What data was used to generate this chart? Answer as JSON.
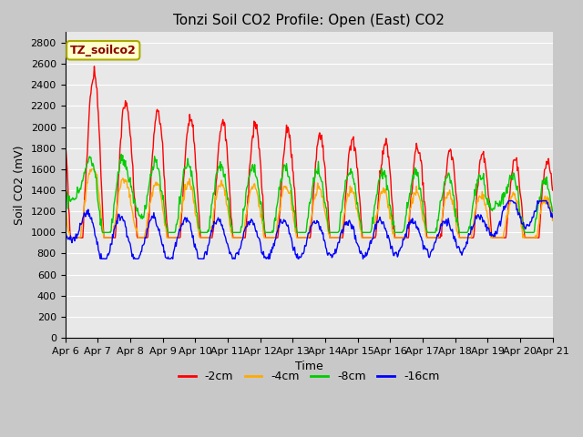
{
  "title": "Tonzi Soil CO2 Profile: Open (East) CO2",
  "xlabel": "Time",
  "ylabel": "Soil CO2 (mV)",
  "ylim": [
    0,
    2900
  ],
  "yticks": [
    0,
    200,
    400,
    600,
    800,
    1000,
    1200,
    1400,
    1600,
    1800,
    2000,
    2200,
    2400,
    2600,
    2800
  ],
  "plot_bg_color": "#e8e8e8",
  "fig_bg_color": "#c8c8c8",
  "legend_label": "TZ_soilco2",
  "series_labels": [
    "-2cm",
    "-4cm",
    "-8cm",
    "-16cm"
  ],
  "series_colors": [
    "#ff0000",
    "#ffaa00",
    "#00cc00",
    "#0000ff"
  ],
  "series_linewidths": [
    1.0,
    1.0,
    1.0,
    1.0
  ],
  "xtick_labels": [
    "Apr 6",
    "Apr 7",
    "Apr 8",
    "Apr 9",
    "Apr 10",
    "Apr 11",
    "Apr 12",
    "Apr 13",
    "Apr 14",
    "Apr 15",
    "Apr 16",
    "Apr 17",
    "Apr 18",
    "Apr 19",
    "Apr 20",
    "Apr 21"
  ],
  "grid_color": "#ffffff",
  "grid_linewidth": 0.8,
  "title_fontsize": 11,
  "axis_fontsize": 9,
  "tick_fontsize": 8
}
